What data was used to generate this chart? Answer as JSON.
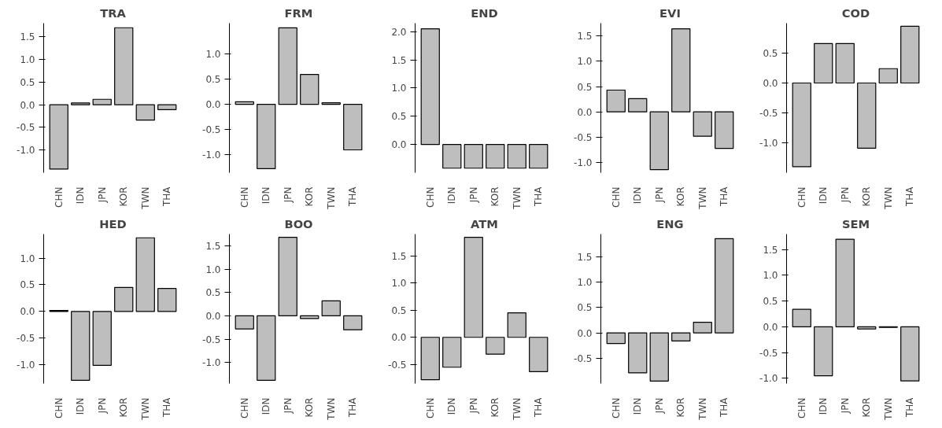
{
  "chart_data": [
    {
      "type": "bar",
      "title": "TRA",
      "categories": [
        "CHN",
        "IDN",
        "JPN",
        "KOR",
        "TWN",
        "THA"
      ],
      "values": [
        -1.42,
        0.04,
        0.12,
        1.7,
        -0.34,
        -0.11
      ],
      "color": "#bebebe",
      "ylim": [
        -1.5,
        1.8
      ],
      "yticks": [
        {
          "value": -1,
          "label": "-1.0"
        },
        {
          "value": -0.5,
          "label": "-0.5"
        },
        {
          "value": 0,
          "label": "0.0"
        },
        {
          "value": 0.5,
          "label": "0.5"
        },
        {
          "value": 1,
          "label": "1.0"
        },
        {
          "value": 1.5,
          "label": "1.5"
        }
      ],
      "grid": false
    },
    {
      "type": "bar",
      "title": "FRM",
      "categories": [
        "CHN",
        "IDN",
        "JPN",
        "KOR",
        "TWN",
        "THA"
      ],
      "values": [
        0.05,
        -1.27,
        1.51,
        0.59,
        0.03,
        -0.9
      ],
      "color": "#bebebe",
      "ylim": [
        -1.35,
        1.6
      ],
      "yticks": [
        {
          "value": -1,
          "label": "-1.0"
        },
        {
          "value": -0.5,
          "label": "-0.5"
        },
        {
          "value": 0,
          "label": "0.0"
        },
        {
          "value": 0.5,
          "label": "0.5"
        },
        {
          "value": 1,
          "label": "1.0"
        }
      ],
      "grid": false
    },
    {
      "type": "bar",
      "title": "END",
      "categories": [
        "CHN",
        "IDN",
        "JPN",
        "KOR",
        "TWN",
        "THA"
      ],
      "values": [
        2.05,
        -0.42,
        -0.42,
        -0.42,
        -0.42,
        -0.42
      ],
      "color": "#bebebe",
      "ylim": [
        -0.5,
        2.15
      ],
      "yticks": [
        {
          "value": 0,
          "label": "0.0"
        },
        {
          "value": 0.5,
          "label": "0.5"
        },
        {
          "value": 1,
          "label": "1.0"
        },
        {
          "value": 1.5,
          "label": "1.5"
        },
        {
          "value": 2,
          "label": "2.0"
        }
      ],
      "grid": false
    },
    {
      "type": "bar",
      "title": "EVI",
      "categories": [
        "CHN",
        "IDN",
        "JPN",
        "KOR",
        "TWN",
        "THA"
      ],
      "values": [
        0.43,
        0.26,
        -1.14,
        1.64,
        -0.48,
        -0.72
      ],
      "color": "#bebebe",
      "ylim": [
        -1.2,
        1.75
      ],
      "yticks": [
        {
          "value": -1,
          "label": "-1.0"
        },
        {
          "value": -0.5,
          "label": "-0.5"
        },
        {
          "value": 0,
          "label": "0.0"
        },
        {
          "value": 0.5,
          "label": "0.5"
        },
        {
          "value": 1,
          "label": "1.0"
        },
        {
          "value": 1.5,
          "label": "1.5"
        }
      ],
      "grid": false
    },
    {
      "type": "bar",
      "title": "COD",
      "categories": [
        "CHN",
        "IDN",
        "JPN",
        "KOR",
        "TWN",
        "THA"
      ],
      "values": [
        -1.4,
        0.66,
        0.66,
        -1.09,
        0.24,
        0.95
      ],
      "color": "#bebebe",
      "ylim": [
        -1.5,
        1.0
      ],
      "yticks": [
        {
          "value": -1,
          "label": "-1.0"
        },
        {
          "value": -0.5,
          "label": "-0.5"
        },
        {
          "value": 0,
          "label": "0.0"
        },
        {
          "value": 0.5,
          "label": "0.5"
        }
      ],
      "grid": false
    },
    {
      "type": "bar",
      "title": "HED",
      "categories": [
        "CHN",
        "IDN",
        "JPN",
        "KOR",
        "TWN",
        "THA"
      ],
      "values": [
        0.02,
        -1.29,
        -1.01,
        0.45,
        1.38,
        0.43
      ],
      "color": "#bebebe",
      "ylim": [
        -1.35,
        1.45
      ],
      "yticks": [
        {
          "value": -1,
          "label": "-1.0"
        },
        {
          "value": -0.5,
          "label": "-0.5"
        },
        {
          "value": 0,
          "label": "0.0"
        },
        {
          "value": 0.5,
          "label": "0.5"
        },
        {
          "value": 1,
          "label": "1.0"
        }
      ],
      "grid": false
    },
    {
      "type": "bar",
      "title": "BOO",
      "categories": [
        "CHN",
        "IDN",
        "JPN",
        "KOR",
        "TWN",
        "THA"
      ],
      "values": [
        -0.28,
        -1.38,
        1.68,
        -0.06,
        0.32,
        -0.3
      ],
      "color": "#bebebe",
      "ylim": [
        -1.45,
        1.75
      ],
      "yticks": [
        {
          "value": -1,
          "label": "-1.0"
        },
        {
          "value": -0.5,
          "label": "-0.5"
        },
        {
          "value": 0,
          "label": "0.0"
        },
        {
          "value": 0.5,
          "label": "0.5"
        },
        {
          "value": 1,
          "label": "1.0"
        },
        {
          "value": 1.5,
          "label": "1.5"
        }
      ],
      "grid": false
    },
    {
      "type": "bar",
      "title": "ATM",
      "categories": [
        "CHN",
        "IDN",
        "JPN",
        "KOR",
        "TWN",
        "THA"
      ],
      "values": [
        -0.78,
        -0.55,
        1.84,
        -0.31,
        0.45,
        -0.63
      ],
      "color": "#bebebe",
      "ylim": [
        -0.85,
        1.9
      ],
      "yticks": [
        {
          "value": -0.5,
          "label": "-0.5"
        },
        {
          "value": 0,
          "label": "0.0"
        },
        {
          "value": 0.5,
          "label": "0.5"
        },
        {
          "value": 1,
          "label": "1.0"
        },
        {
          "value": 1.5,
          "label": "1.5"
        }
      ],
      "grid": false
    },
    {
      "type": "bar",
      "title": "ENG",
      "categories": [
        "CHN",
        "IDN",
        "JPN",
        "KOR",
        "TWN",
        "THA"
      ],
      "values": [
        -0.21,
        -0.79,
        -0.95,
        -0.16,
        0.21,
        1.86
      ],
      "color": "#bebebe",
      "ylim": [
        -1.0,
        1.95
      ],
      "yticks": [
        {
          "value": -0.5,
          "label": "-0.5"
        },
        {
          "value": 0,
          "label": "0.0"
        },
        {
          "value": 0.5,
          "label": "0.5"
        },
        {
          "value": 1,
          "label": "1.0"
        },
        {
          "value": 1.5,
          "label": "1.5"
        }
      ],
      "grid": false
    },
    {
      "type": "bar",
      "title": "SEM",
      "categories": [
        "CHN",
        "IDN",
        "JPN",
        "KOR",
        "TWN",
        "THA"
      ],
      "values": [
        0.34,
        -0.95,
        1.7,
        -0.04,
        -0.01,
        -1.05
      ],
      "color": "#bebebe",
      "ylim": [
        -1.1,
        1.8
      ],
      "yticks": [
        {
          "value": -1,
          "label": "-1.0"
        },
        {
          "value": -0.5,
          "label": "-0.5"
        },
        {
          "value": 0,
          "label": "0.0"
        },
        {
          "value": 0.5,
          "label": "0.5"
        },
        {
          "value": 1,
          "label": "1.0"
        },
        {
          "value": 1.5,
          "label": "1.5"
        }
      ],
      "grid": false
    }
  ]
}
